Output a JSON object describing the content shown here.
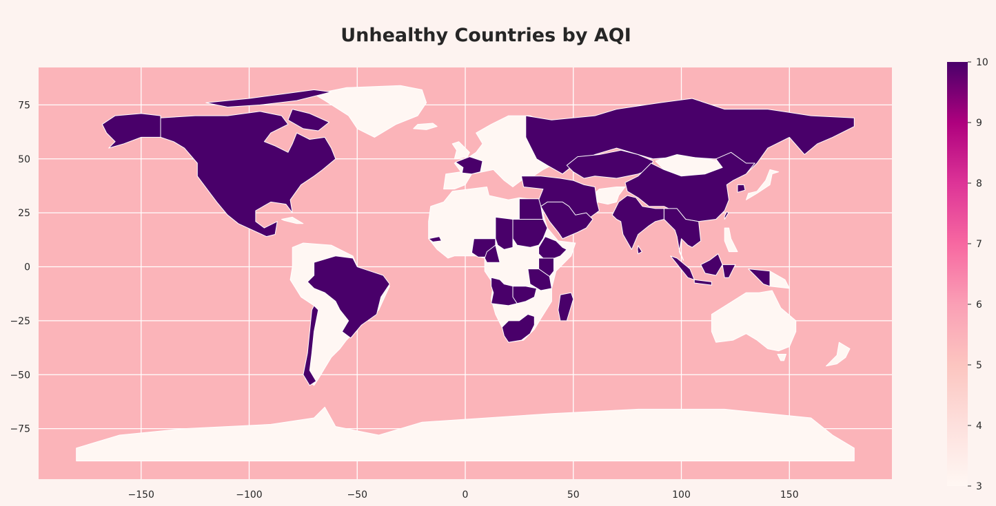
{
  "title": "Unhealthy Countries by AQI",
  "colors": {
    "ocean": "#fbb4b9",
    "page_bg": "#fdf3f0",
    "high": "#49006a",
    "low": "#fff7f3",
    "border": "#ffffff"
  },
  "chart_data": {
    "type": "choropleth",
    "title": "Unhealthy Countries by AQI",
    "xlim": [
      -198,
      198
    ],
    "ylim": [
      -98,
      92
    ],
    "x_ticks": [
      -150,
      -100,
      -50,
      0,
      50,
      100,
      150
    ],
    "y_ticks": [
      75,
      50,
      25,
      0,
      -25,
      -50,
      -75
    ],
    "x_tick_labels": [
      "−150",
      "−100",
      "−50",
      "0",
      "50",
      "100",
      "150"
    ],
    "y_tick_labels": [
      "75",
      "50",
      "25",
      "0",
      "−25",
      "−50",
      "−75"
    ],
    "grid": true,
    "colorbar": {
      "min": 3,
      "max": 10,
      "ticks": [
        10,
        9,
        8,
        7,
        6,
        5,
        4,
        3
      ],
      "cmap": "RdPu"
    },
    "regions": [
      {
        "name": "North America (USA, Canada, Mexico)",
        "value": 10
      },
      {
        "name": "Alaska",
        "value": 10
      },
      {
        "name": "Brazil",
        "value": 10
      },
      {
        "name": "Chile",
        "value": 10
      },
      {
        "name": "Russia",
        "value": 10
      },
      {
        "name": "China",
        "value": 10
      },
      {
        "name": "Kazakhstan",
        "value": 10
      },
      {
        "name": "India",
        "value": 10
      },
      {
        "name": "Southeast Asia",
        "value": 10
      },
      {
        "name": "Middle East",
        "value": 10
      },
      {
        "name": "France",
        "value": 10
      },
      {
        "name": "Turkey",
        "value": 10
      },
      {
        "name": "Egypt",
        "value": 10
      },
      {
        "name": "Sudan",
        "value": 10
      },
      {
        "name": "Ethiopia",
        "value": 10
      },
      {
        "name": "Nigeria",
        "value": 10
      },
      {
        "name": "Angola",
        "value": 10
      },
      {
        "name": "South Africa",
        "value": 10
      },
      {
        "name": "Madagascar",
        "value": 10
      },
      {
        "name": "Indonesia",
        "value": 10
      },
      {
        "name": "Greenland",
        "value": 3
      },
      {
        "name": "Europe",
        "value": 3
      },
      {
        "name": "North Africa",
        "value": 3
      },
      {
        "name": "Central Africa",
        "value": 3
      },
      {
        "name": "South America (other)",
        "value": 3
      },
      {
        "name": "Mongolia",
        "value": 3
      },
      {
        "name": "Australia",
        "value": 3
      },
      {
        "name": "New Zealand",
        "value": 3
      },
      {
        "name": "Antarctica",
        "value": 3
      }
    ]
  }
}
